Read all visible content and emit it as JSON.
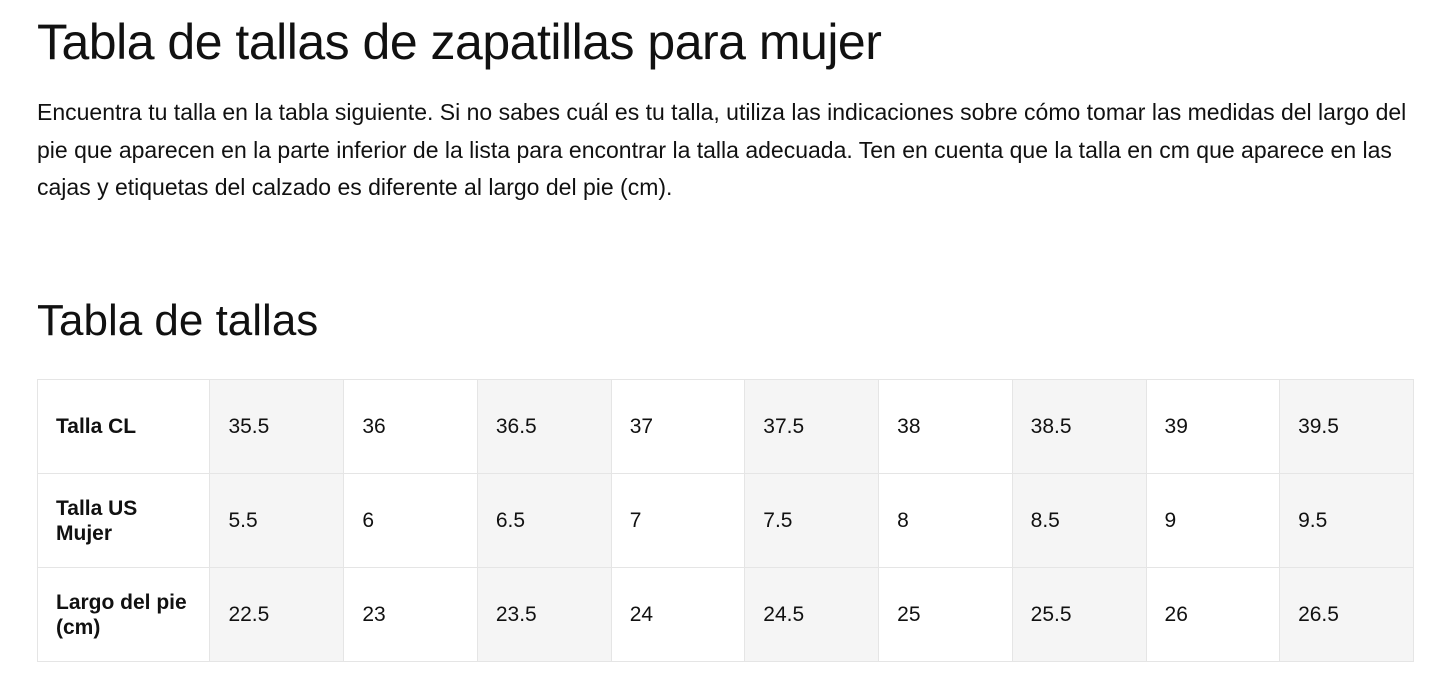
{
  "header": {
    "title": "Tabla de tallas de zapatillas para mujer",
    "intro": "Encuentra tu talla en la tabla siguiente. Si no sabes cuál es tu talla, utiliza las indicaciones sobre cómo tomar las medidas del largo del pie que aparecen en la parte inferior de la lista para encontrar la talla adecuada. Ten en cuenta que la talla en cm que aparece en las cajas y etiquetas del calzado es diferente al largo del pie (cm)."
  },
  "section": {
    "title": "Tabla de tallas"
  },
  "table": {
    "rows": [
      {
        "label": "Talla CL",
        "cells": [
          "35.5",
          "36",
          "36.5",
          "37",
          "37.5",
          "38",
          "38.5",
          "39",
          "39.5"
        ]
      },
      {
        "label": "Talla US Mujer",
        "cells": [
          "5.5",
          "6",
          "6.5",
          "7",
          "7.5",
          "8",
          "8.5",
          "9",
          "9.5"
        ]
      },
      {
        "label": "Largo del pie (cm)",
        "cells": [
          "22.5",
          "23",
          "23.5",
          "24",
          "24.5",
          "25",
          "25.5",
          "26",
          "26.5"
        ]
      }
    ]
  }
}
